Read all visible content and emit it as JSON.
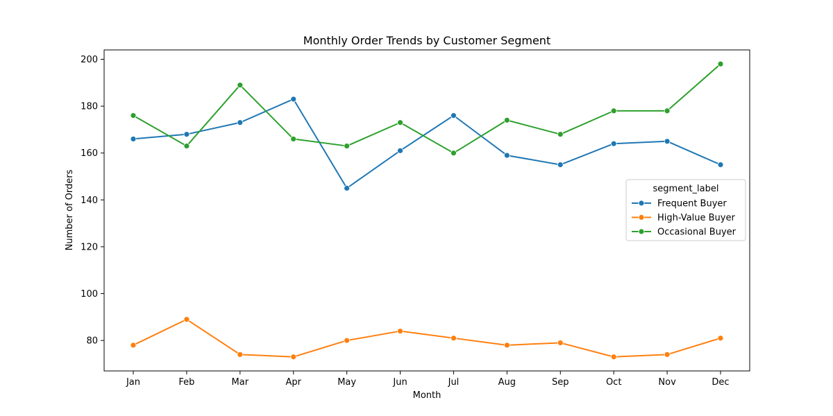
{
  "chart_data": {
    "type": "line",
    "title": "Monthly Order Trends by Customer Segment",
    "xlabel": "Month",
    "ylabel": "Number of Orders",
    "categories": [
      "Jan",
      "Feb",
      "Mar",
      "Apr",
      "May",
      "Jun",
      "Jul",
      "Aug",
      "Sep",
      "Oct",
      "Nov",
      "Dec"
    ],
    "ylim": [
      67,
      204
    ],
    "yticks": [
      80,
      100,
      120,
      140,
      160,
      180,
      200
    ],
    "grid": false,
    "legend": {
      "title": "segment_label",
      "placement": "center-right"
    },
    "series": [
      {
        "name": "Frequent Buyer",
        "color": "#1f77b4",
        "values": [
          166,
          168,
          173,
          183,
          145,
          161,
          176,
          159,
          155,
          164,
          165,
          155
        ]
      },
      {
        "name": "High-Value Buyer",
        "color": "#ff7f0e",
        "values": [
          78,
          89,
          74,
          73,
          80,
          84,
          81,
          78,
          79,
          73,
          74,
          81
        ]
      },
      {
        "name": "Occasional Buyer",
        "color": "#2ca02c",
        "values": [
          176,
          163,
          189,
          166,
          163,
          173,
          160,
          174,
          168,
          178,
          178,
          198
        ]
      }
    ]
  }
}
